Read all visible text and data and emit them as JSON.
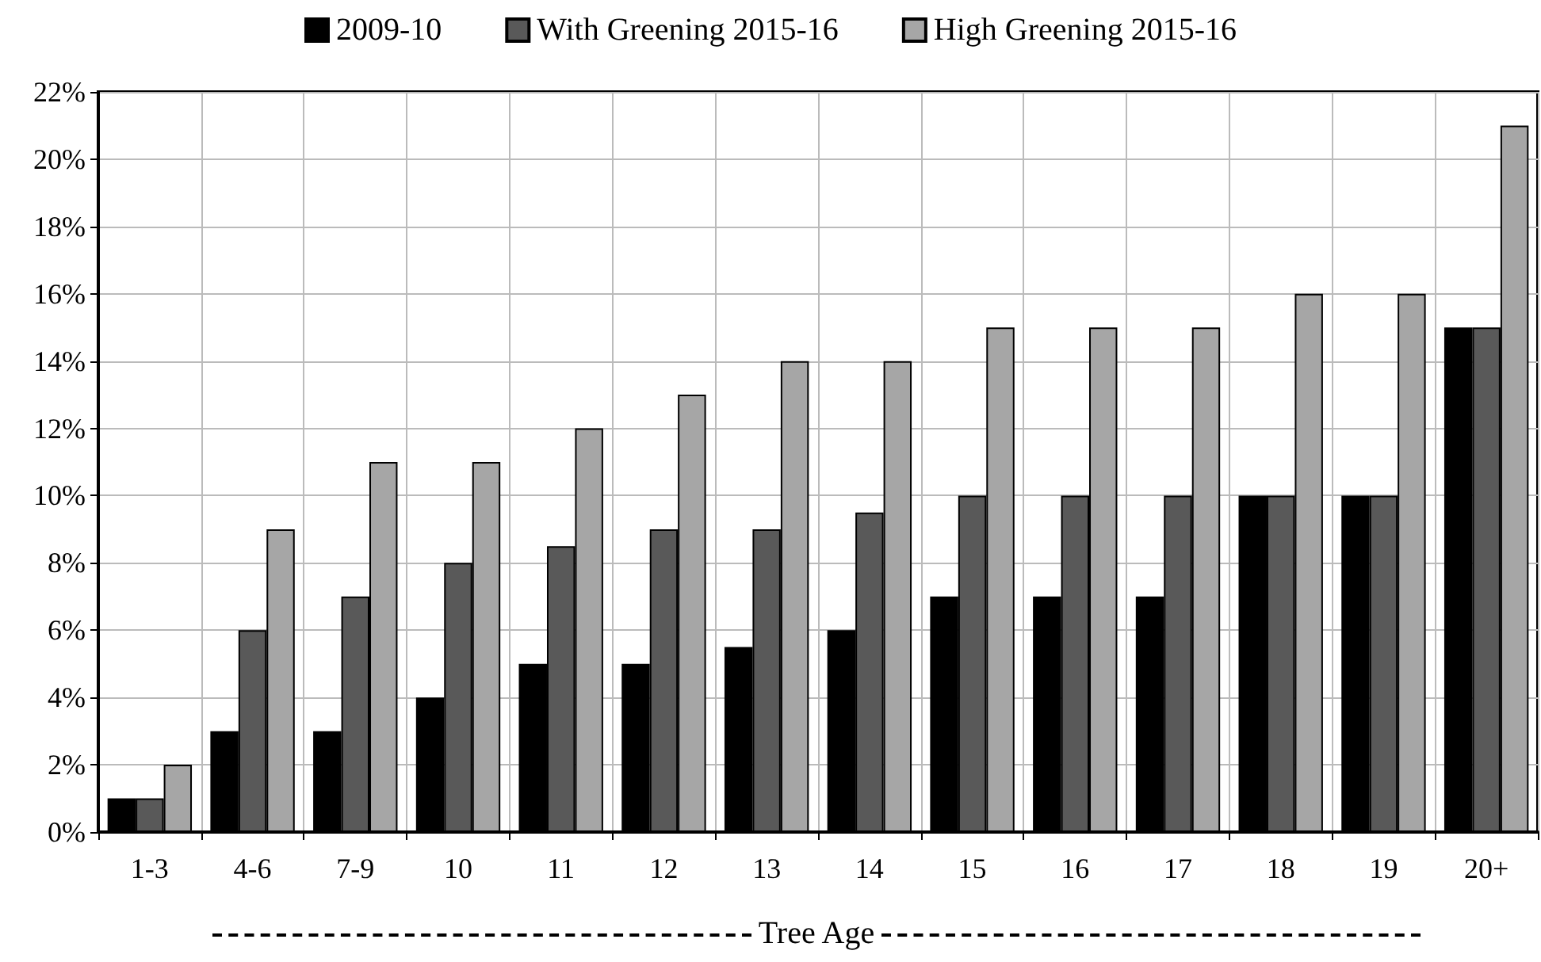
{
  "chart_data": {
    "type": "bar",
    "xlabel": "Tree Age",
    "categories": [
      "1-3",
      "4-6",
      "7-9",
      "10",
      "11",
      "12",
      "13",
      "14",
      "15",
      "16",
      "17",
      "18",
      "19",
      "20+"
    ],
    "series": [
      {
        "name": "2009-10",
        "color": "#000000",
        "values": [
          1,
          3,
          3,
          4,
          5,
          5,
          5.5,
          6,
          7,
          7,
          7,
          10,
          10,
          15
        ]
      },
      {
        "name": "With Greening 2015-16",
        "color": "#595959",
        "values": [
          1,
          6,
          7,
          8,
          8.5,
          9,
          9,
          9.5,
          10,
          10,
          10,
          10,
          10,
          15
        ]
      },
      {
        "name": "High Greening 2015-16",
        "color": "#a6a6a6",
        "values": [
          2,
          9,
          11,
          11,
          12,
          13,
          14,
          14,
          15,
          15,
          15,
          16,
          16,
          21
        ]
      }
    ],
    "ylim": [
      0,
      22
    ],
    "yticks": [
      {
        "value": 0,
        "label": "0%"
      },
      {
        "value": 2,
        "label": "2%"
      },
      {
        "value": 4,
        "label": "4%"
      },
      {
        "value": 6,
        "label": "6%"
      },
      {
        "value": 8,
        "label": "8%"
      },
      {
        "value": 10,
        "label": "10%"
      },
      {
        "value": 12,
        "label": "12%"
      },
      {
        "value": 14,
        "label": "14%"
      },
      {
        "value": 16,
        "label": "16%"
      },
      {
        "value": 18,
        "label": "18%"
      },
      {
        "value": 20,
        "label": "20%"
      },
      {
        "value": 22,
        "label": "22%"
      }
    ],
    "grid": true,
    "legend": "top"
  }
}
